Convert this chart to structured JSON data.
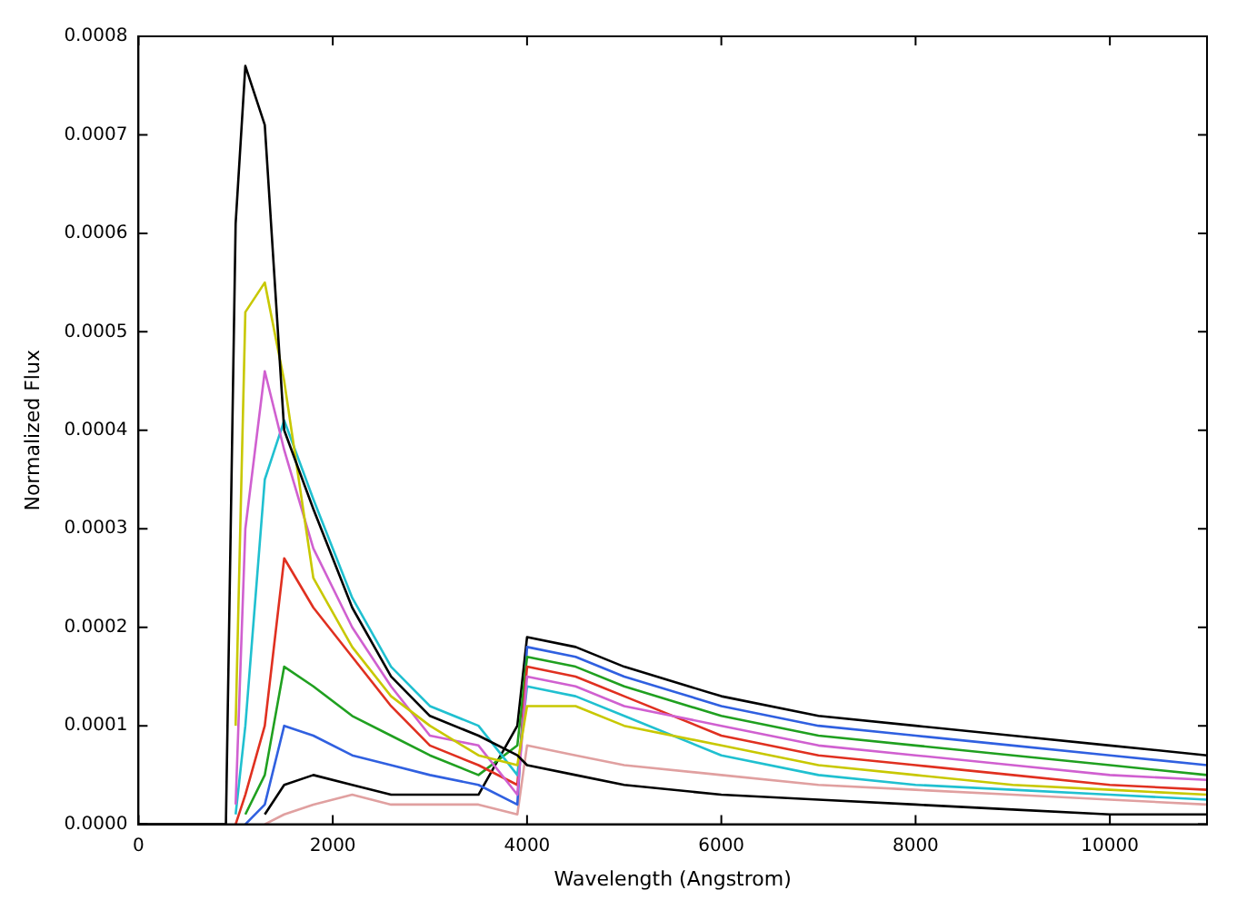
{
  "chart_data": {
    "type": "line",
    "xlabel": "Wavelength (Angstrom)",
    "ylabel": "Normalized Flux",
    "x": [
      0,
      900,
      1000,
      1100,
      1300,
      1500,
      1800,
      2200,
      2600,
      3000,
      3500,
      3900,
      4000,
      4500,
      5000,
      6000,
      7000,
      8000,
      9000,
      10000,
      11000
    ],
    "series": [
      {
        "color": "#000000",
        "values": [
          0,
          0,
          0.00061,
          0.00077,
          0.00071,
          0.0004,
          0.00032,
          0.00022,
          0.00015,
          0.00011,
          9e-05,
          7e-05,
          6e-05,
          5e-05,
          4e-05,
          3e-05,
          2.5e-05,
          2e-05,
          1.5e-05,
          1e-05,
          1e-05
        ]
      },
      {
        "color": "#c8c800",
        "values": [
          null,
          null,
          0.0001,
          0.00052,
          0.00055,
          0.00045,
          0.00025,
          0.00018,
          0.00013,
          0.0001,
          7e-05,
          6e-05,
          0.00012,
          0.00012,
          0.0001,
          8e-05,
          6e-05,
          5e-05,
          4e-05,
          3.5e-05,
          3e-05
        ]
      },
      {
        "color": "#d060d0",
        "values": [
          null,
          null,
          2e-05,
          0.0003,
          0.00046,
          0.00038,
          0.00028,
          0.0002,
          0.00014,
          9e-05,
          8e-05,
          3e-05,
          0.00015,
          0.00014,
          0.00012,
          0.0001,
          8e-05,
          7e-05,
          6e-05,
          5e-05,
          4.5e-05
        ]
      },
      {
        "color": "#20c0d0",
        "values": [
          null,
          null,
          1e-05,
          0.0001,
          0.00035,
          0.00041,
          0.00033,
          0.00023,
          0.00016,
          0.00012,
          0.0001,
          5e-05,
          0.00014,
          0.00013,
          0.00011,
          7e-05,
          5e-05,
          4e-05,
          3.5e-05,
          3e-05,
          2.5e-05
        ]
      },
      {
        "color": "#e03020",
        "values": [
          null,
          null,
          0,
          3e-05,
          0.0001,
          0.00027,
          0.00022,
          0.00017,
          0.00012,
          8e-05,
          6e-05,
          4e-05,
          0.00016,
          0.00015,
          0.00013,
          9e-05,
          7e-05,
          6e-05,
          5e-05,
          4e-05,
          3.5e-05
        ]
      },
      {
        "color": "#20a020",
        "values": [
          null,
          null,
          null,
          1e-05,
          5e-05,
          0.00016,
          0.00014,
          0.00011,
          9e-05,
          7e-05,
          5e-05,
          8e-05,
          0.00017,
          0.00016,
          0.00014,
          0.00011,
          9e-05,
          8e-05,
          7e-05,
          6e-05,
          5e-05
        ]
      },
      {
        "color": "#3060e0",
        "values": [
          null,
          null,
          null,
          0,
          2e-05,
          0.0001,
          9e-05,
          7e-05,
          6e-05,
          5e-05,
          4e-05,
          2e-05,
          0.00018,
          0.00017,
          0.00015,
          0.00012,
          0.0001,
          9e-05,
          8e-05,
          7e-05,
          6e-05
        ]
      },
      {
        "color": "#000000",
        "values": [
          null,
          null,
          null,
          null,
          1e-05,
          4e-05,
          5e-05,
          4e-05,
          3e-05,
          3e-05,
          3e-05,
          0.0001,
          0.00019,
          0.00018,
          0.00016,
          0.00013,
          0.00011,
          0.0001,
          9e-05,
          8e-05,
          7e-05
        ]
      },
      {
        "color": "#e0a0a0",
        "values": [
          null,
          null,
          null,
          null,
          0,
          1e-05,
          2e-05,
          3e-05,
          2e-05,
          2e-05,
          2e-05,
          1e-05,
          8e-05,
          7e-05,
          6e-05,
          5e-05,
          4e-05,
          3.5e-05,
          3e-05,
          2.5e-05,
          2e-05
        ]
      }
    ],
    "xlim": [
      0,
      11000
    ],
    "xticks": [
      0,
      2000,
      4000,
      6000,
      8000,
      10000
    ],
    "ylim": [
      0,
      0.0008
    ],
    "yticks": [
      {
        "value": 0,
        "label": "0.0000"
      },
      {
        "value": 0.0001,
        "label": "0.0001"
      },
      {
        "value": 0.0002,
        "label": "0.0002"
      },
      {
        "value": 0.0003,
        "label": "0.0003"
      },
      {
        "value": 0.0004,
        "label": "0.0004"
      },
      {
        "value": 0.0005,
        "label": "0.0005"
      },
      {
        "value": 0.0006,
        "label": "0.0006"
      },
      {
        "value": 0.0007,
        "label": "0.0007"
      },
      {
        "value": 0.0008,
        "label": "0.0008"
      }
    ],
    "grid": false,
    "legend": false,
    "marker": "none",
    "line_style": "solid"
  }
}
